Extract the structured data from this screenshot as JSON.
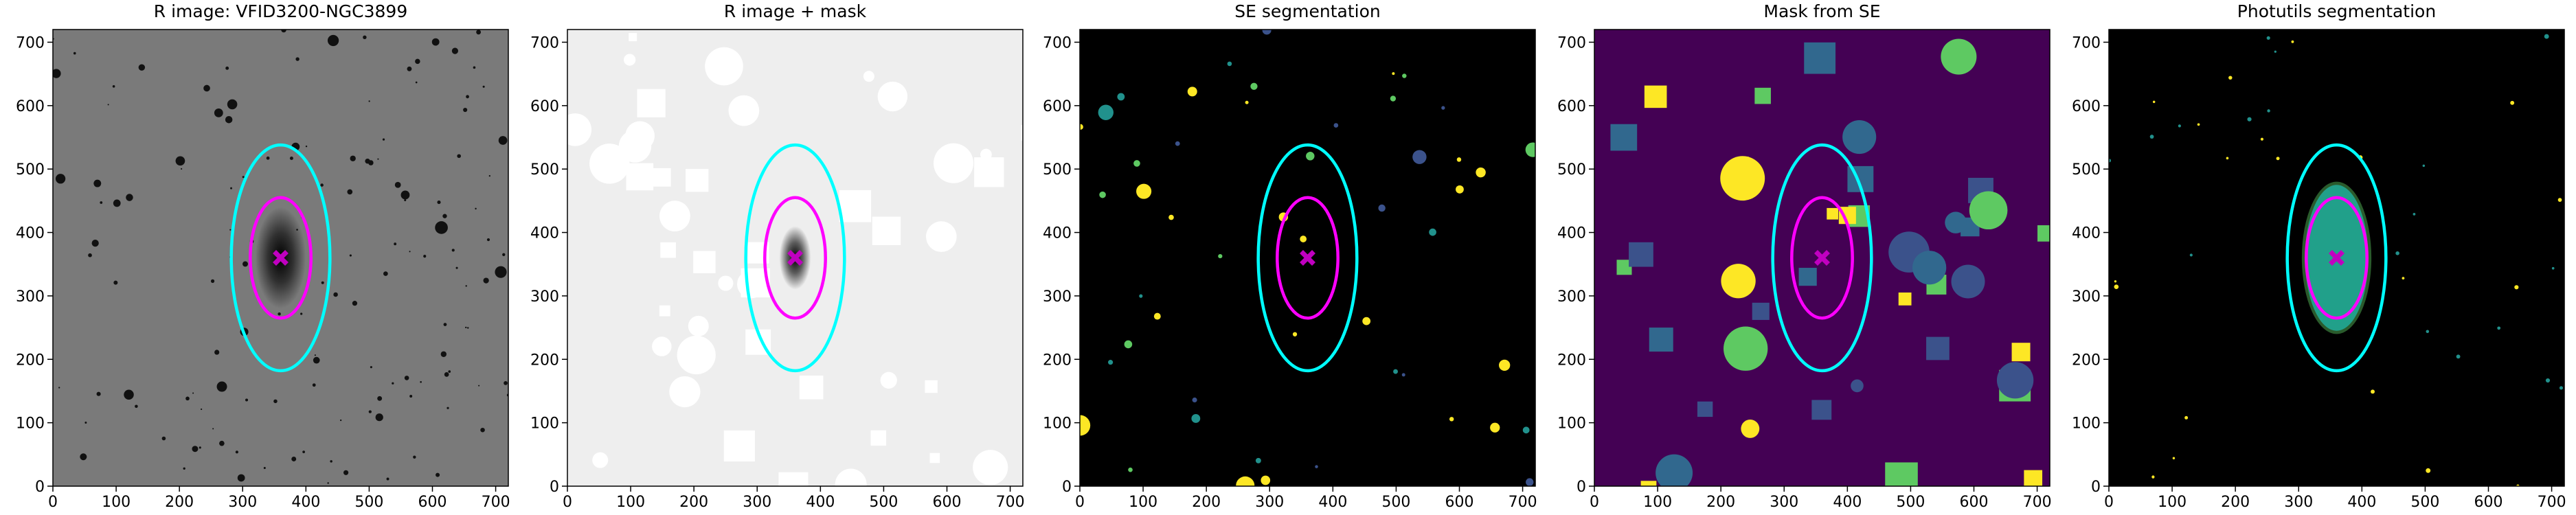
{
  "chart_data": [
    {
      "type": "image",
      "title": "R image: VFID3200-NGC3899",
      "background": "#7a7a7a",
      "xlim": [
        0,
        720
      ],
      "ylim": [
        0,
        720
      ],
      "xticks": [
        0,
        100,
        200,
        300,
        400,
        500,
        600,
        700
      ],
      "yticks": [
        0,
        100,
        200,
        300,
        400,
        500,
        600,
        700
      ],
      "ellipses": [
        {
          "cx": 360,
          "cy": 360,
          "rx": 78,
          "ry": 178,
          "color": "#00ffff"
        },
        {
          "cx": 360,
          "cy": 360,
          "rx": 48,
          "ry": 95,
          "color": "#ff00ff"
        }
      ],
      "center": [
        360,
        360
      ],
      "center_color": "#c000c0"
    },
    {
      "type": "image",
      "title": "R image + mask",
      "background": "#eeeeee",
      "xlim": [
        0,
        720
      ],
      "ylim": [
        0,
        720
      ],
      "xticks": [
        0,
        100,
        200,
        300,
        400,
        500,
        600,
        700
      ],
      "yticks": [
        0,
        100,
        200,
        300,
        400,
        500,
        600,
        700
      ],
      "ellipses": [
        {
          "cx": 360,
          "cy": 360,
          "rx": 78,
          "ry": 178,
          "color": "#00ffff"
        },
        {
          "cx": 360,
          "cy": 360,
          "rx": 48,
          "ry": 95,
          "color": "#ff00ff"
        }
      ],
      "center": [
        360,
        360
      ],
      "center_color": "#c000c0"
    },
    {
      "type": "image",
      "title": "SE segmentation",
      "background": "#000000",
      "xlim": [
        0,
        720
      ],
      "ylim": [
        0,
        720
      ],
      "xticks": [
        0,
        100,
        200,
        300,
        400,
        500,
        600,
        700
      ],
      "yticks": [
        0,
        100,
        200,
        300,
        400,
        500,
        600,
        700
      ],
      "ellipses": [
        {
          "cx": 360,
          "cy": 360,
          "rx": 78,
          "ry": 178,
          "color": "#00ffff"
        },
        {
          "cx": 360,
          "cy": 360,
          "rx": 48,
          "ry": 95,
          "color": "#ff00ff"
        }
      ],
      "center": [
        360,
        360
      ],
      "center_color": "#c000c0"
    },
    {
      "type": "image",
      "title": "Mask from SE",
      "background": "#440154",
      "xlim": [
        0,
        720
      ],
      "ylim": [
        0,
        720
      ],
      "xticks": [
        0,
        100,
        200,
        300,
        400,
        500,
        600,
        700
      ],
      "yticks": [
        0,
        100,
        200,
        300,
        400,
        500,
        600,
        700
      ],
      "ellipses": [
        {
          "cx": 360,
          "cy": 360,
          "rx": 78,
          "ry": 178,
          "color": "#00ffff"
        },
        {
          "cx": 360,
          "cy": 360,
          "rx": 48,
          "ry": 95,
          "color": "#ff00ff"
        }
      ],
      "center": [
        360,
        360
      ],
      "center_color": "#c000c0"
    },
    {
      "type": "image",
      "title": "Photutils segmentation",
      "background": "#000000",
      "xlim": [
        0,
        720
      ],
      "ylim": [
        0,
        720
      ],
      "xticks": [
        0,
        100,
        200,
        300,
        400,
        500,
        600,
        700
      ],
      "yticks": [
        0,
        100,
        200,
        300,
        400,
        500,
        600,
        700
      ],
      "ellipses": [
        {
          "cx": 360,
          "cy": 360,
          "rx": 78,
          "ry": 178,
          "color": "#00ffff"
        },
        {
          "cx": 360,
          "cy": 360,
          "rx": 48,
          "ry": 95,
          "color": "#ff00ff"
        }
      ],
      "center": [
        360,
        360
      ],
      "center_color": "#c000c0"
    }
  ]
}
